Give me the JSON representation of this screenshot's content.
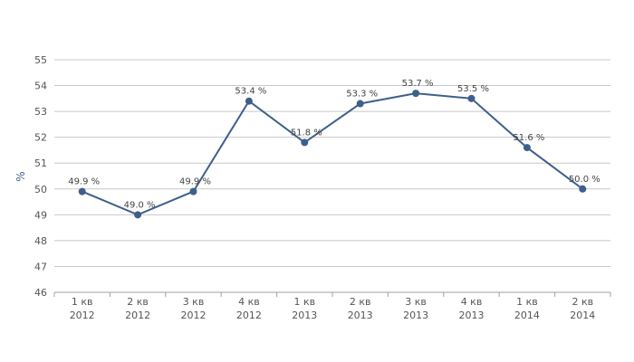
{
  "chart_data": {
    "type": "line",
    "categories": [
      "1 кв\n2012",
      "2 кв\n2012",
      "3 кв\n2012",
      "4 кв\n2012",
      "1 кв\n2013",
      "2 кв\n2013",
      "3 кв\n2013",
      "4 кв\n2013",
      "1 кв\n2014",
      "2 кв\n2014"
    ],
    "values": [
      49.9,
      49.0,
      49.9,
      53.4,
      51.8,
      53.3,
      53.7,
      53.5,
      51.6,
      50.0
    ],
    "data_labels": [
      "49.9 %",
      "49.0 %",
      "49.9 %",
      "53.4 %",
      "51.8 %",
      "53.3 %",
      "53.7 %",
      "53.5 %",
      "51.6 %",
      "50.0 %"
    ],
    "ylabel": "%",
    "ylim": [
      46,
      55
    ],
    "yticks": [
      "46",
      "47",
      "48",
      "49",
      "50",
      "51",
      "52",
      "53",
      "54",
      "55"
    ],
    "grid": true,
    "legend": "none",
    "colors": {
      "line": "#3e5f8a",
      "grid": "#c8c8c8",
      "axis": "#a0a0a0"
    }
  }
}
